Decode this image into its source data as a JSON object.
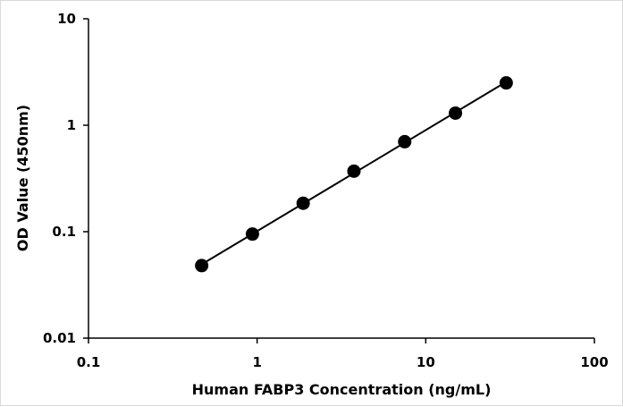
{
  "chart_data": {
    "type": "scatter",
    "xlabel": "Human FABP3 Concentration (ng/mL)",
    "ylabel": "OD Value (450nm)",
    "x_scale": "log",
    "y_scale": "log",
    "xlim": [
      0.1,
      100
    ],
    "ylim": [
      0.01,
      10
    ],
    "x_ticks": [
      "0.1",
      "1",
      "10",
      "100"
    ],
    "y_ticks": [
      "0.01",
      "0.1",
      "1",
      "10"
    ],
    "grid": false,
    "legend": "none",
    "marker_color": "#000000",
    "series": [
      {
        "x": [
          0.469,
          0.938,
          1.875,
          3.75,
          7.5,
          15,
          30
        ],
        "y": [
          0.048,
          0.095,
          0.185,
          0.37,
          0.7,
          1.3,
          2.5
        ],
        "trendline": "power"
      }
    ]
  }
}
